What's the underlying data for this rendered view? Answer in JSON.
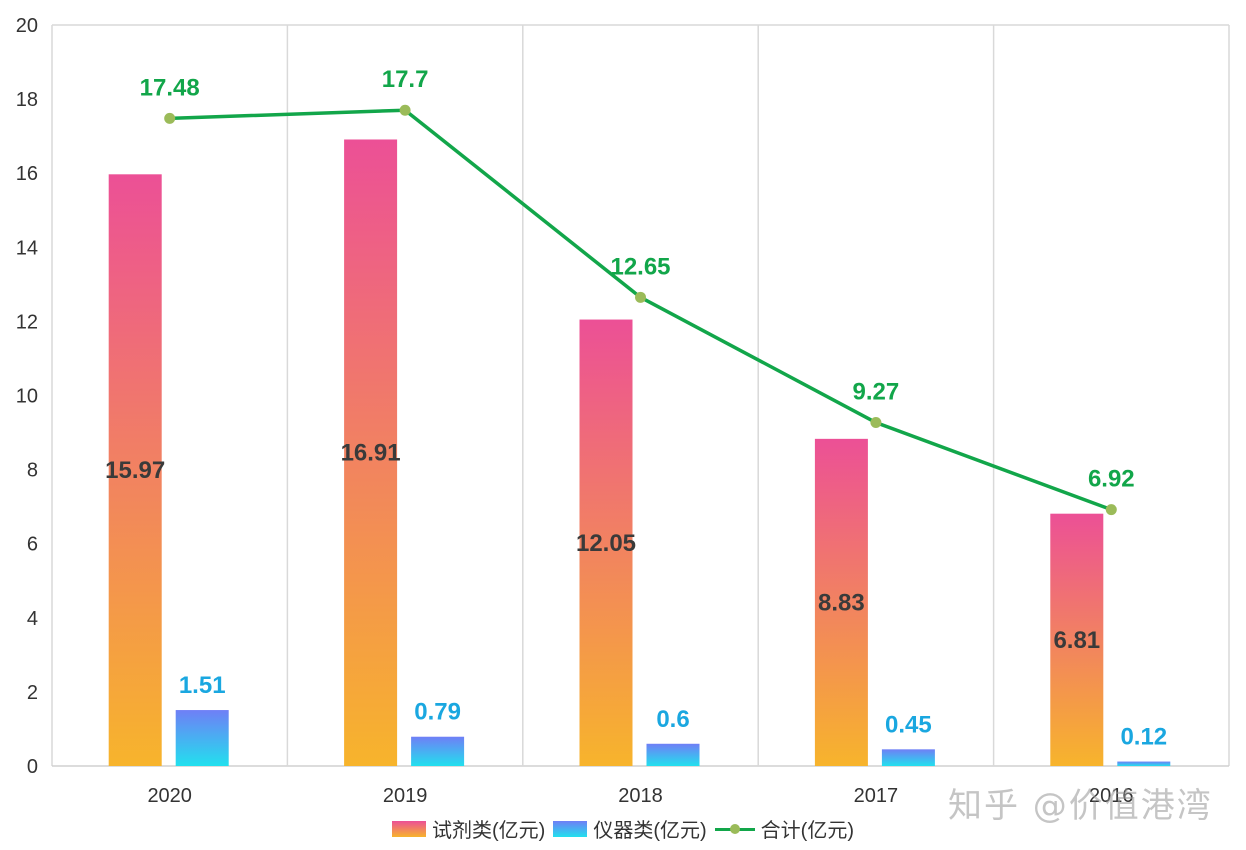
{
  "chart_data": {
    "type": "bar+line",
    "categories": [
      "2020",
      "2019",
      "2018",
      "2017",
      "2016"
    ],
    "series": [
      {
        "name": "试剂类(亿元)",
        "kind": "bar",
        "values": [
          15.97,
          16.91,
          12.05,
          8.83,
          6.81
        ],
        "labels": [
          "15.97",
          "16.91",
          "12.05",
          "8.83",
          "6.81"
        ]
      },
      {
        "name": "仪器类(亿元)",
        "kind": "bar",
        "values": [
          1.51,
          0.79,
          0.6,
          0.45,
          0.12
        ],
        "labels": [
          "1.51",
          "0.79",
          "0.6",
          "0.45",
          "0.12"
        ]
      },
      {
        "name": "合计(亿元)",
        "kind": "line",
        "values": [
          17.48,
          17.7,
          12.65,
          9.27,
          6.92
        ],
        "labels": [
          "17.48",
          "17.7",
          "12.65",
          "9.27",
          "6.92"
        ]
      }
    ],
    "yticks": [
      "0",
      "2",
      "4",
      "6",
      "8",
      "10",
      "12",
      "14",
      "16",
      "18",
      "20"
    ],
    "ylim": [
      0,
      20
    ],
    "grid": "vertical",
    "legend": "bottom-center",
    "colors": {
      "reagent_top": "#ec5096",
      "reagent_bottom": "#f7b42c",
      "instr_top": "#6f7ff6",
      "instr_bottom": "#22e0ee",
      "line": "#12a64a",
      "marker": "#9bbb59",
      "reagent_label": "#3a3a3a",
      "instr_label": "#1aa7e0",
      "total_label": "#12a64a"
    }
  },
  "legend": {
    "reagent": "试剂类(亿元)",
    "instrument": "仪器类(亿元)",
    "total": "合计(亿元)"
  },
  "watermark": "知乎 @价值港湾"
}
